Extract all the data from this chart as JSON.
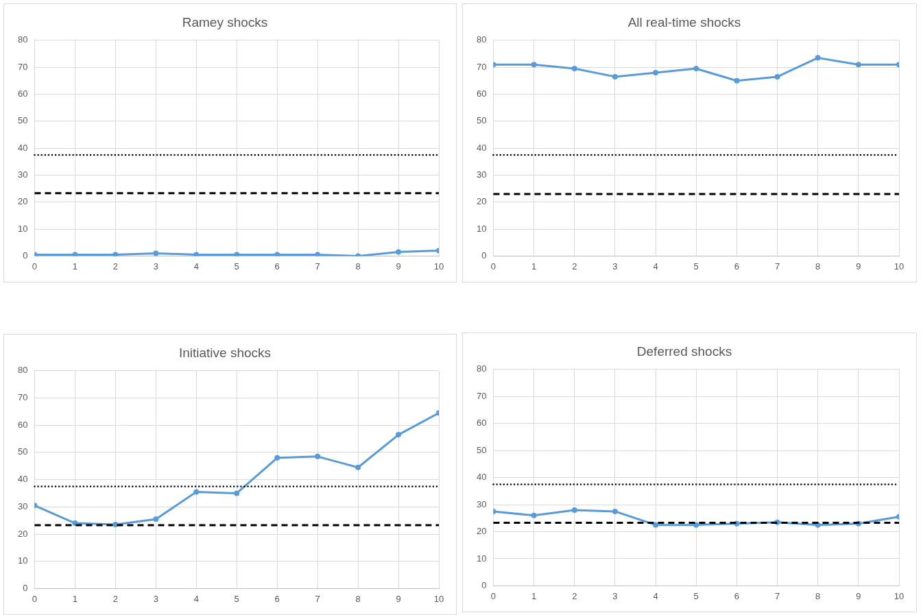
{
  "chart_data": [
    {
      "type": "line",
      "title": "Ramey shocks",
      "x": [
        0,
        1,
        2,
        3,
        4,
        5,
        6,
        7,
        8,
        9,
        10
      ],
      "xlim": [
        0,
        10
      ],
      "xticks": [
        0,
        1,
        2,
        3,
        4,
        5,
        6,
        7,
        8,
        9,
        10
      ],
      "ylim": [
        0,
        80
      ],
      "yticks": [
        0,
        10,
        20,
        30,
        40,
        50,
        60,
        70,
        80
      ],
      "grid": true,
      "marker": "circle",
      "line_style": "solid",
      "legend": false,
      "series": [
        {
          "color": "#5b9bd5",
          "values": [
            0.5,
            0.5,
            0.5,
            1,
            0.5,
            0.5,
            0.5,
            0.5,
            0,
            1.5,
            2
          ]
        }
      ],
      "ref_lines": [
        {
          "axis": "y",
          "value": 37.5,
          "line_style": "dotted",
          "color": "#000000"
        },
        {
          "axis": "y",
          "value": 23.3,
          "line_style": "dashed",
          "color": "#000000"
        }
      ]
    },
    {
      "type": "line",
      "title": "All real-time shocks",
      "x": [
        0,
        1,
        2,
        3,
        4,
        5,
        6,
        7,
        8,
        9,
        10
      ],
      "xlim": [
        0,
        10
      ],
      "xticks": [
        0,
        1,
        2,
        3,
        4,
        5,
        6,
        7,
        8,
        9,
        10
      ],
      "ylim": [
        0,
        80
      ],
      "yticks": [
        0,
        10,
        20,
        30,
        40,
        50,
        60,
        70,
        80
      ],
      "grid": true,
      "marker": "circle",
      "line_style": "solid",
      "legend": false,
      "series": [
        {
          "color": "#5b9bd5",
          "values": [
            71,
            71,
            69.5,
            66.5,
            68,
            69.5,
            65,
            66.5,
            73.5,
            71,
            71
          ]
        }
      ],
      "ref_lines": [
        {
          "axis": "y",
          "value": 37.5,
          "line_style": "dotted",
          "color": "#000000"
        },
        {
          "axis": "y",
          "value": 23,
          "line_style": "dashed",
          "color": "#000000"
        }
      ]
    },
    {
      "type": "line",
      "title": "Initiative shocks",
      "x": [
        0,
        1,
        2,
        3,
        4,
        5,
        6,
        7,
        8,
        9,
        10
      ],
      "xlim": [
        0,
        10
      ],
      "xticks": [
        0,
        1,
        2,
        3,
        4,
        5,
        6,
        7,
        8,
        9,
        10
      ],
      "ylim": [
        0,
        80
      ],
      "yticks": [
        0,
        10,
        20,
        30,
        40,
        50,
        60,
        70,
        80
      ],
      "grid": true,
      "marker": "circle",
      "line_style": "solid",
      "legend": false,
      "series": [
        {
          "color": "#5b9bd5",
          "values": [
            30.5,
            24,
            23.5,
            25.5,
            35.5,
            35,
            48,
            48.5,
            44.5,
            56.5,
            64.5
          ]
        }
      ],
      "ref_lines": [
        {
          "axis": "y",
          "value": 37.5,
          "line_style": "dotted",
          "color": "#000000"
        },
        {
          "axis": "y",
          "value": 23.3,
          "line_style": "dashed",
          "color": "#000000"
        }
      ]
    },
    {
      "type": "line",
      "title": "Deferred shocks",
      "x": [
        0,
        1,
        2,
        3,
        4,
        5,
        6,
        7,
        8,
        9,
        10
      ],
      "xlim": [
        0,
        10
      ],
      "xticks": [
        0,
        1,
        2,
        3,
        4,
        5,
        6,
        7,
        8,
        9,
        10
      ],
      "ylim": [
        0,
        80
      ],
      "yticks": [
        0,
        10,
        20,
        30,
        40,
        50,
        60,
        70,
        80
      ],
      "grid": true,
      "marker": "circle",
      "line_style": "solid",
      "legend": false,
      "series": [
        {
          "color": "#5b9bd5",
          "values": [
            27.5,
            26,
            28,
            27.5,
            22.5,
            22.5,
            23,
            23.5,
            22.5,
            23,
            25.5
          ]
        }
      ],
      "ref_lines": [
        {
          "axis": "y",
          "value": 37.5,
          "line_style": "dotted",
          "color": "#000000"
        },
        {
          "axis": "y",
          "value": 23.3,
          "line_style": "dashed",
          "color": "#000000"
        }
      ]
    }
  ]
}
